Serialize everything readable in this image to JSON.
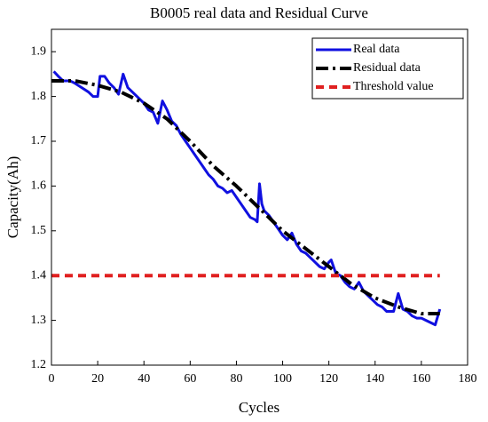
{
  "chart_data": {
    "type": "line",
    "title": "B0005 real data and Residual Curve",
    "x_label": "Cycles",
    "y_label": "Capacity(Ah)",
    "xlim": [
      0,
      180
    ],
    "ylim": [
      1.2,
      1.95
    ],
    "xticks": [
      0,
      20,
      40,
      60,
      80,
      100,
      120,
      140,
      160,
      180
    ],
    "yticks": [
      1.2,
      1.3,
      1.4,
      1.5,
      1.6,
      1.7,
      1.8,
      1.9
    ],
    "legend": "upper right",
    "series": [
      {
        "name": "Real data",
        "color": "#1010e0",
        "style": "solid",
        "x": [
          1,
          3,
          5,
          8,
          10,
          13,
          16,
          18,
          20,
          21,
          23,
          25,
          27,
          29,
          31,
          33,
          35,
          37,
          40,
          42,
          44,
          46,
          48,
          50,
          52,
          54,
          56,
          58,
          60,
          62,
          64,
          66,
          68,
          70,
          72,
          74,
          76,
          78,
          80,
          82,
          84,
          86,
          88,
          89,
          90,
          91,
          92,
          94,
          96,
          98,
          100,
          102,
          104,
          106,
          108,
          110,
          112,
          114,
          116,
          118,
          120,
          121,
          123,
          125,
          127,
          129,
          131,
          133,
          135,
          137,
          139,
          141,
          143,
          145,
          148,
          150,
          152,
          154,
          156,
          158,
          160,
          162,
          164,
          166,
          168
        ],
        "values": [
          1.856,
          1.845,
          1.835,
          1.835,
          1.83,
          1.82,
          1.81,
          1.8,
          1.8,
          1.845,
          1.845,
          1.83,
          1.82,
          1.805,
          1.85,
          1.82,
          1.81,
          1.8,
          1.785,
          1.77,
          1.765,
          1.74,
          1.79,
          1.77,
          1.745,
          1.735,
          1.715,
          1.7,
          1.685,
          1.67,
          1.655,
          1.64,
          1.625,
          1.615,
          1.6,
          1.595,
          1.585,
          1.59,
          1.575,
          1.56,
          1.545,
          1.53,
          1.525,
          1.52,
          1.605,
          1.56,
          1.545,
          1.535,
          1.52,
          1.505,
          1.49,
          1.48,
          1.495,
          1.47,
          1.455,
          1.45,
          1.44,
          1.43,
          1.42,
          1.415,
          1.43,
          1.435,
          1.405,
          1.4,
          1.385,
          1.375,
          1.37,
          1.385,
          1.365,
          1.355,
          1.345,
          1.335,
          1.33,
          1.32,
          1.32,
          1.36,
          1.325,
          1.32,
          1.31,
          1.305,
          1.305,
          1.3,
          1.295,
          1.29,
          1.325
        ]
      },
      {
        "name": "Residual data",
        "color": "#000000",
        "style": "dashdot",
        "x": [
          0,
          10,
          20,
          30,
          40,
          50,
          60,
          70,
          80,
          90,
          100,
          110,
          120,
          130,
          140,
          150,
          160,
          168
        ],
        "values": [
          1.835,
          1.835,
          1.825,
          1.81,
          1.785,
          1.75,
          1.7,
          1.645,
          1.6,
          1.55,
          1.5,
          1.46,
          1.42,
          1.38,
          1.35,
          1.33,
          1.315,
          1.315
        ]
      },
      {
        "name": "Threshold value",
        "color": "#e02020",
        "style": "dashed",
        "x": [
          0,
          168
        ],
        "values": [
          1.4,
          1.4
        ]
      }
    ]
  }
}
